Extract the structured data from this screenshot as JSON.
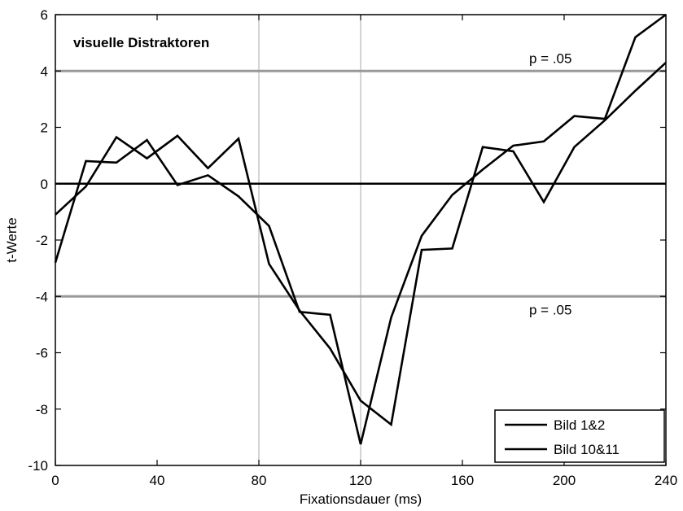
{
  "chart_data": {
    "type": "line",
    "title": "",
    "inner_title": "visuelle Distraktoren",
    "xlabel": "Fixationsdauer (ms)",
    "ylabel": "t-Werte",
    "xlim": [
      0,
      240
    ],
    "ylim": [
      -10,
      6
    ],
    "x_ticks": [
      0,
      40,
      80,
      120,
      160,
      200,
      240
    ],
    "x_tick_labels": [
      "0",
      "40",
      "80",
      "120",
      "160",
      "200",
      "240"
    ],
    "y_ticks": [
      -10,
      -8,
      -6,
      -4,
      -2,
      0,
      2,
      4,
      6
    ],
    "y_tick_labels": [
      "-10",
      "-8",
      "-6",
      "-4",
      "-2",
      "0",
      "2",
      "4",
      "6"
    ],
    "grid": false,
    "reference_lines": {
      "horizontal": [
        {
          "y": 4,
          "label": "p = .05",
          "color": "#999999"
        },
        {
          "y": -4,
          "label": "p = .05",
          "color": "#999999"
        },
        {
          "y": 0,
          "label": "",
          "color": "#000000"
        }
      ],
      "vertical": [
        {
          "x": 80,
          "color": "#aaaaaa"
        },
        {
          "x": 120,
          "color": "#aaaaaa"
        }
      ]
    },
    "legend_placement": "bottom-right",
    "series": [
      {
        "name": "Bild 1&2",
        "color": "#000000",
        "x": [
          0,
          12,
          24,
          36,
          48,
          60,
          72,
          84,
          96,
          108,
          120,
          132,
          144,
          156,
          168,
          180,
          192,
          204,
          216,
          228,
          240
        ],
        "y": [
          -2.8,
          0.8,
          0.75,
          1.55,
          -0.05,
          0.3,
          -0.45,
          -1.5,
          -4.55,
          -4.65,
          -9.25,
          -4.75,
          -1.85,
          -0.4,
          0.5,
          1.35,
          1.5,
          2.4,
          2.3,
          5.2,
          6.0
        ]
      },
      {
        "name": "Bild 10&11",
        "color": "#000000",
        "x": [
          0,
          12,
          24,
          36,
          48,
          60,
          72,
          84,
          96,
          108,
          120,
          132,
          144,
          156,
          168,
          180,
          192,
          204,
          216,
          228,
          240
        ],
        "y": [
          -1.1,
          -0.1,
          1.65,
          0.9,
          1.7,
          0.55,
          1.6,
          -2.85,
          -4.5,
          -5.85,
          -7.7,
          -8.55,
          -2.35,
          -2.3,
          1.3,
          1.15,
          -0.65,
          1.3,
          2.25,
          3.3,
          4.3
        ]
      }
    ]
  }
}
